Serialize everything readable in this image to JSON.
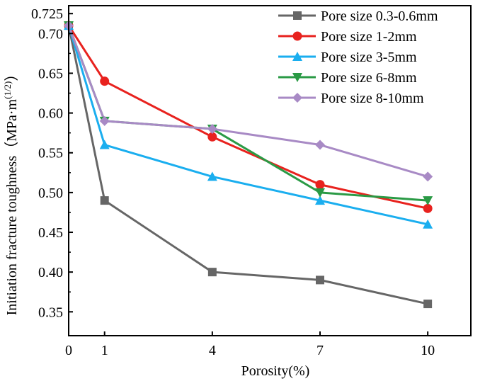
{
  "chart_data": {
    "type": "line",
    "title": "",
    "xlabel": "Porosity(%)",
    "ylabel": "Initiation fracture toughness（MPa·m",
    "ylabel_superscript": "(1/2)",
    "ylabel_suffix": "）",
    "xlim": [
      0,
      11.2
    ],
    "ylim": [
      0.32,
      0.735
    ],
    "x_ticks": [
      0,
      1,
      4,
      7,
      10
    ],
    "x_tick_labels": [
      "0",
      "1",
      "4",
      "7",
      "10"
    ],
    "y_ticks": [
      0.35,
      0.4,
      0.45,
      0.5,
      0.55,
      0.6,
      0.65,
      0.7,
      0.725
    ],
    "y_tick_labels": [
      "0.35",
      "0.40",
      "0.45",
      "0.50",
      "0.55",
      "0.60",
      "0.65",
      "0.70",
      "0.725"
    ],
    "grid": false,
    "legend_position": "top-right",
    "x": [
      0,
      1,
      4,
      7,
      10
    ],
    "series": [
      {
        "name": "Pore size 0.3-0.6mm",
        "color": "#666666",
        "marker": "square",
        "values": [
          0.71,
          0.49,
          0.4,
          0.39,
          0.36
        ]
      },
      {
        "name": "Pore size 1-2mm",
        "color": "#e8221e",
        "marker": "circle",
        "values": [
          0.71,
          0.64,
          0.57,
          0.51,
          0.48
        ]
      },
      {
        "name": "Pore size 3-5mm",
        "color": "#1aaeef",
        "marker": "triangle-up",
        "values": [
          0.71,
          0.56,
          0.52,
          0.49,
          0.46
        ]
      },
      {
        "name": "Pore size 6-8mm",
        "color": "#2a9a45",
        "marker": "triangle-down",
        "values": [
          0.71,
          0.59,
          0.58,
          0.5,
          0.49
        ]
      },
      {
        "name": "Pore size 8-10mm",
        "color": "#a88ac5",
        "marker": "diamond",
        "values": [
          0.71,
          0.59,
          0.58,
          0.56,
          0.52
        ]
      }
    ]
  }
}
